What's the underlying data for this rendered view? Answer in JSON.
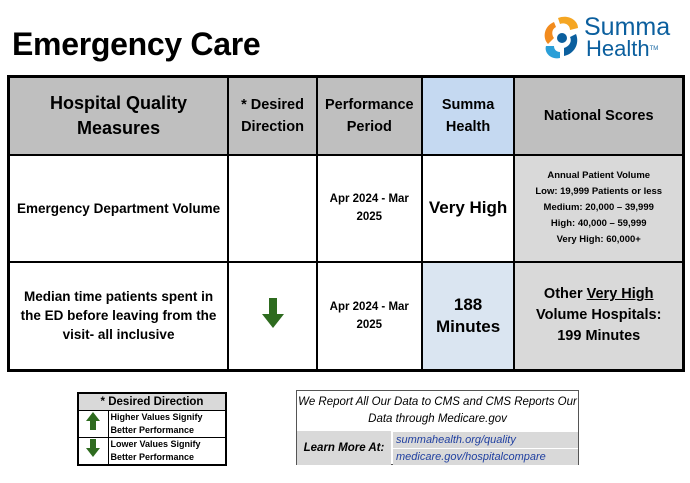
{
  "page": {
    "title": "Emergency Care"
  },
  "logo": {
    "line1": "Summa",
    "line2": "Health",
    "tm": "TM"
  },
  "table": {
    "headers": {
      "measure": "Hospital Quality Measures",
      "direction": "* Desired Direction",
      "period": "Performance Period",
      "summa": "Summa Health",
      "national": "National Scores"
    },
    "rows": [
      {
        "measure": "Emergency Department Volume",
        "direction": "",
        "period": "Apr 2024 - Mar 2025",
        "summa": "Very High",
        "national_lines": [
          "Annual Patient Volume",
          "Low: 19,999 Patients or less",
          "Medium: 20,000 – 39,999",
          "High: 40,000 – 59,999",
          "Very High: 60,000+"
        ]
      },
      {
        "measure": "Median time patients spent in the ED before leaving from the visit- all inclusive",
        "direction_icon": "down-arrow-icon",
        "period": "Apr 2024 - Mar 2025",
        "summa_line1": "188",
        "summa_line2": "Minutes",
        "national_prefix": "Other ",
        "national_underlined": "Very High",
        "national_line2": "Volume Hospitals:",
        "national_line3": "199 Minutes"
      }
    ]
  },
  "legend": {
    "title": "* Desired Direction",
    "higher": "Higher Values Signify Better Performance",
    "lower": "Lower Values Signify Better Performance"
  },
  "info": {
    "text": "We Report All Our Data to CMS and CMS Reports Our Data through Medicare.gov",
    "learn_more": "Learn More At:",
    "link1": "summahealth.org/quality",
    "link2": "medicare.gov/hospitalcompare"
  },
  "colors": {
    "arrow_green": "#2e6b1f",
    "logo_blue": "#0b5f9e",
    "logo_orange": "#f28b1e",
    "summa_header": "#c5d9f1",
    "gray": "#bfbfbf"
  }
}
